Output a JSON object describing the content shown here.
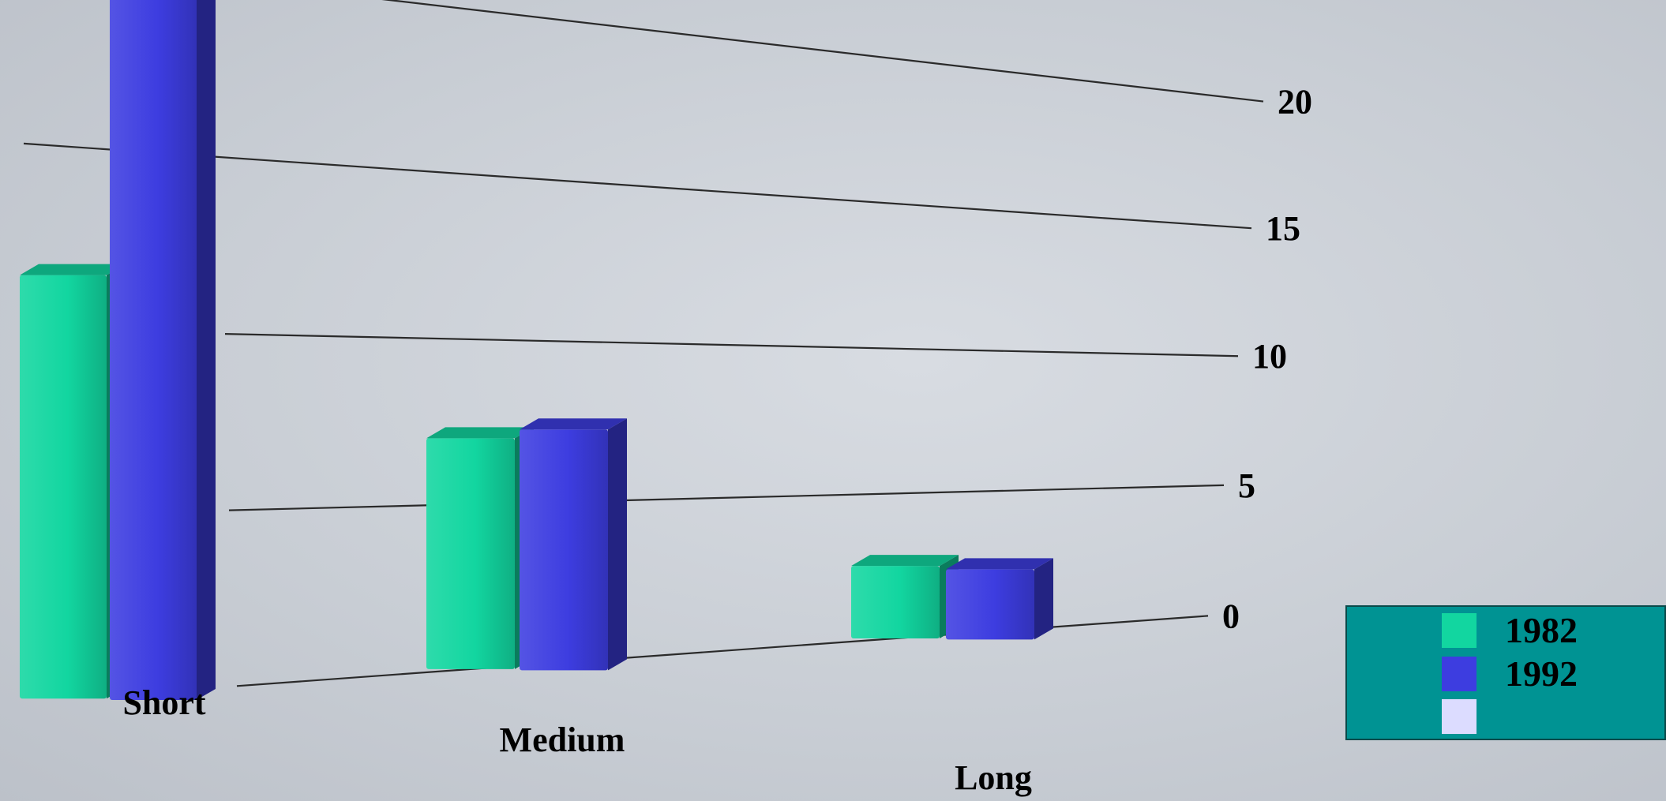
{
  "chart_data": {
    "type": "bar",
    "title": "",
    "xlabel": "",
    "ylabel": "",
    "categories": [
      "Short",
      "Medium",
      "Long"
    ],
    "series": [
      {
        "name": "1982",
        "values": [
          11.5,
          7.0,
          2.5
        ],
        "color": "#12d6a0"
      },
      {
        "name": "1992",
        "values": [
          20.0,
          7.5,
          2.5
        ],
        "color": "#3d3de0"
      },
      {
        "name": "",
        "values": [
          null,
          null,
          null
        ],
        "color": "#dcdcff"
      }
    ],
    "y_ticks": [
      "0",
      "5",
      "10",
      "15",
      "20"
    ],
    "ylim": [
      0,
      20
    ],
    "grid": true,
    "legend_position": "bottom-right",
    "legend_background": "#009393"
  }
}
